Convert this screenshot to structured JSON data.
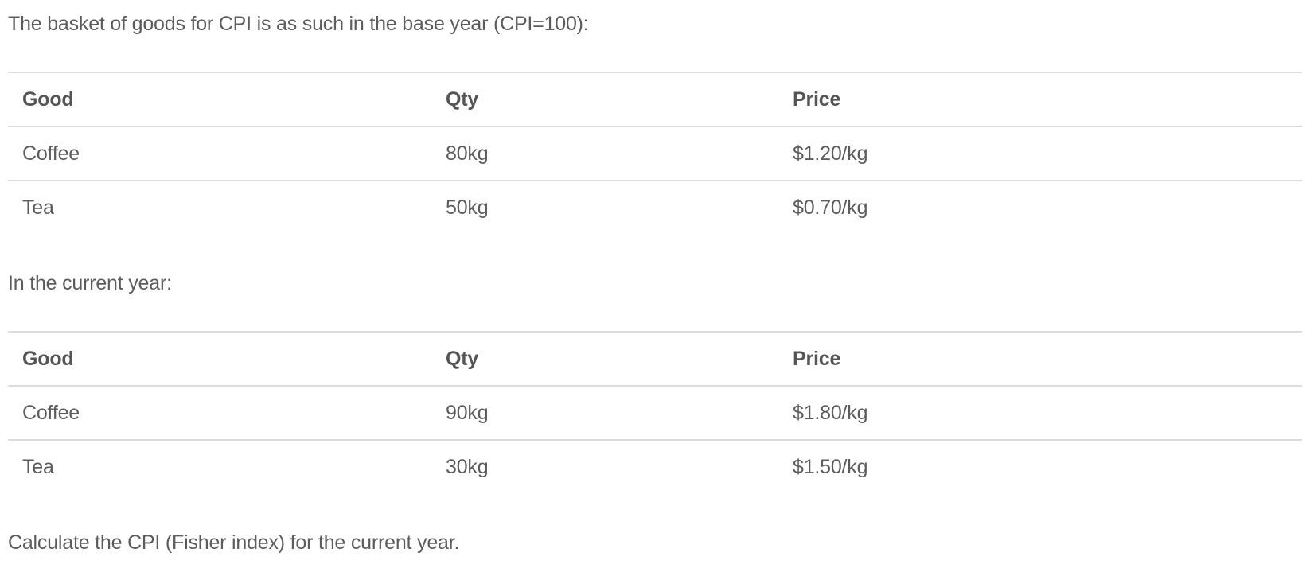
{
  "intro": "The basket of goods for CPI is as such in the base year (CPI=100):",
  "base_table": {
    "headers": [
      "Good",
      "Qty",
      "Price"
    ],
    "rows": [
      [
        "Coffee",
        "80kg",
        "$1.20/kg"
      ],
      [
        "Tea",
        "50kg",
        "$0.70/kg"
      ]
    ]
  },
  "current_label": "In the current year:",
  "current_table": {
    "headers": [
      "Good",
      "Qty",
      "Price"
    ],
    "rows": [
      [
        "Coffee",
        "90kg",
        "$1.80/kg"
      ],
      [
        "Tea",
        "30kg",
        "$1.50/kg"
      ]
    ]
  },
  "question": "Calculate the CPI (Fisher index) for the current year."
}
